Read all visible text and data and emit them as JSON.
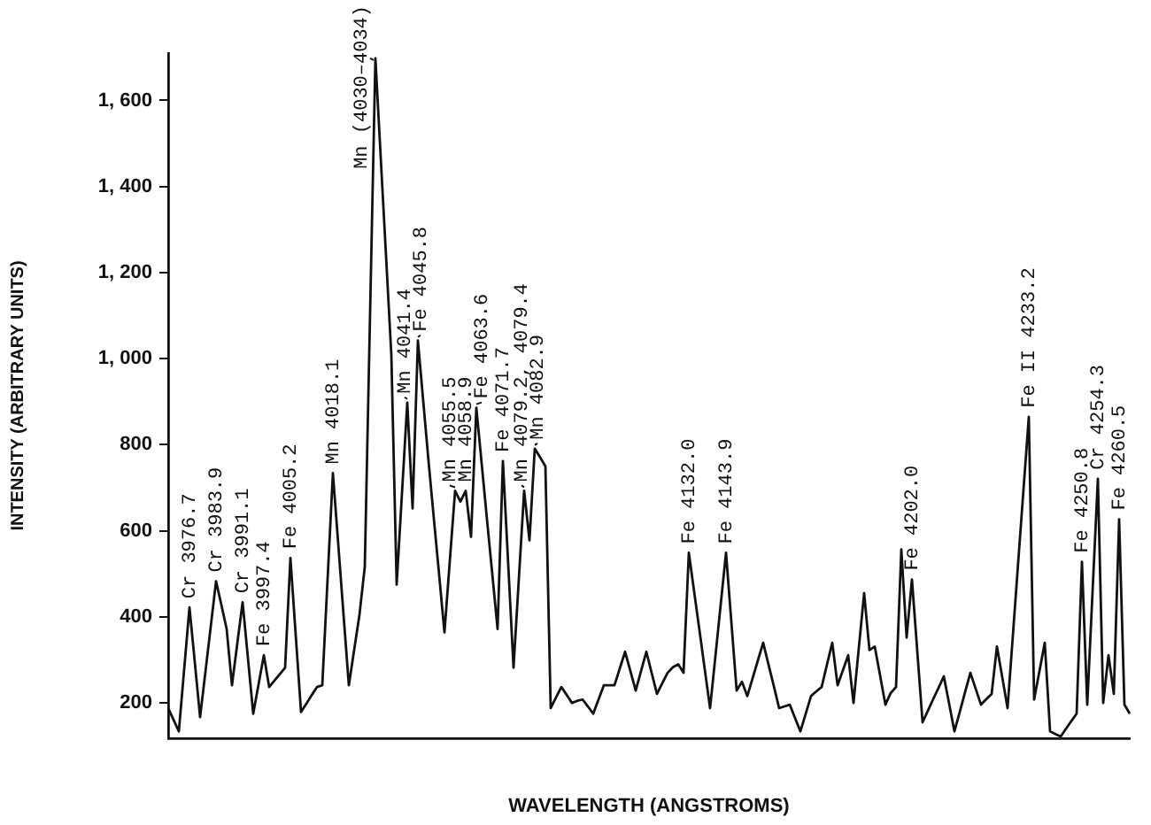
{
  "chart_data": {
    "type": "line",
    "xlabel": "WAVELENGTH (ANGSTROMS)",
    "ylabel": "INTENSITY (ARBITRARY UNITS)",
    "categories": [
      null,
      null,
      null,
      null,
      null,
      null,
      null,
      null,
      null,
      null,
      null,
      null,
      null,
      null,
      null,
      null,
      null,
      null,
      null,
      null,
      null,
      null,
      null,
      null,
      null,
      null,
      null,
      null,
      null,
      null,
      null,
      null,
      null,
      null,
      null,
      null,
      null,
      null,
      null,
      null,
      null,
      null,
      null,
      null,
      null,
      null,
      null,
      null,
      null,
      null,
      null,
      null,
      null,
      null,
      null,
      null,
      null,
      null,
      null,
      null,
      null,
      null,
      null,
      null,
      null,
      null,
      null,
      null,
      null,
      null,
      null,
      null,
      null,
      null,
      null,
      null,
      null,
      null,
      null,
      null,
      null,
      null,
      null,
      null,
      null,
      null,
      null,
      null,
      null,
      null,
      null,
      null,
      null,
      null,
      null,
      null,
      null,
      null,
      null,
      null,
      null,
      null,
      null,
      null,
      null,
      null,
      null,
      null,
      null,
      null,
      null,
      null,
      null,
      null,
      null,
      null,
      null,
      null,
      null,
      null,
      null,
      null,
      null,
      null,
      null,
      null,
      null,
      null,
      null,
      null,
      null,
      null,
      null,
      null,
      null,
      null,
      null,
      null,
      null,
      null,
      null,
      null,
      null,
      null,
      null,
      null,
      null,
      null,
      null,
      null,
      null,
      null,
      null,
      null,
      null,
      null,
      null,
      null,
      null,
      null,
      null,
      null,
      null,
      null,
      null,
      null,
      null,
      null,
      null,
      null,
      null,
      null,
      null,
      null,
      null,
      null,
      null,
      null,
      null,
      null,
      null,
      null
    ],
    "ylim": [
      118,
      1710
    ],
    "yticks": [
      {
        "value": 200,
        "label": "200"
      },
      {
        "value": 400,
        "label": "400"
      },
      {
        "value": 600,
        "label": "600"
      },
      {
        "value": 800,
        "label": "800"
      },
      {
        "value": 1000,
        "label": "1, 000"
      },
      {
        "value": 1200,
        "label": "1, 200"
      },
      {
        "value": 1400,
        "label": "1, 400"
      },
      {
        "value": 1600,
        "label": "1, 600"
      }
    ],
    "tick_labels": "y",
    "grid": false,
    "legend": false,
    "marker": "none",
    "line_style": "solid",
    "series": [
      {
        "color": "#111111",
        "values": [
          188,
          161,
          134,
          278,
          422,
          295,
          167,
          272,
          377,
          483,
          428,
          372,
          241,
          338,
          434,
          305,
          175,
          243,
          311,
          237,
          252,
          267,
          282,
          537,
          358,
          179,
          198,
          218,
          237,
          241,
          488,
          734,
          570,
          405,
          241,
          323,
          405,
          516,
          1107,
          1698,
          1468,
          1239,
          1009,
          475,
          687,
          898,
          652,
          1042,
          902,
          762,
          629,
          497,
          364,
          529,
          693,
          668,
          693,
          586,
          886,
          757,
          627,
          500,
          372,
          762,
          522,
          282,
          488,
          693,
          578,
          791,
          771,
          750,
          188,
          213,
          237,
          219,
          200,
          205,
          208,
          192,
          175,
          208,
          241,
          241,
          241,
          280,
          319,
          274,
          229,
          274,
          319,
          270,
          221,
          246,
          270,
          283,
          290,
          270,
          549,
          459,
          369,
          278,
          188,
          308,
          429,
          549,
          389,
          229,
          249,
          216,
          257,
          299,
          340,
          289,
          239,
          188,
          192,
          196,
          165,
          134,
          175,
          216,
          227,
          237,
          289,
          340,
          241,
          276,
          311,
          200,
          328,
          455,
          323,
          331,
          264,
          196,
          223,
          237,
          557,
          352,
          487,
          321,
          155,
          182,
          209,
          235,
          262,
          198,
          134,
          179,
          225,
          270,
          233,
          196,
          209,
          221,
          331,
          260,
          188,
          357,
          527,
          696,
          865,
          208,
          274,
          340,
          134,
          128,
          122,
          140,
          158,
          175,
          528,
          196,
          459,
          721,
          200,
          311,
          221,
          627,
          196,
          175
        ]
      }
    ],
    "annotations": [
      {
        "text": "Cr 3976.7",
        "y": 422
      },
      {
        "text": "Cr 3983.9",
        "y": 483
      },
      {
        "text": "Cr 3991.1",
        "y": 434
      },
      {
        "text": "Fe 3997.4",
        "y": 311
      },
      {
        "text": "Fe 4005.2",
        "y": 537
      },
      {
        "text": "Mn 4018.1",
        "y": 734
      },
      {
        "text": "Mn (4030–4034)",
        "y": 1698
      },
      {
        "text": "Mn 4041.4",
        "y": 898
      },
      {
        "text": "Fe 4045.8",
        "y": 1042
      },
      {
        "text": "Mn 4055.5",
        "y": 693
      },
      {
        "text": "Mn 4058.9",
        "y": 693
      },
      {
        "text": "Fe 4063.6",
        "y": 886
      },
      {
        "text": "Fe 4071.7",
        "y": 762
      },
      {
        "text": "Mn 4079.2, 4079.4",
        "y": 693
      },
      {
        "text": "Mn 4082.9",
        "y": 791
      },
      {
        "text": "Fe 4132.0",
        "y": 549
      },
      {
        "text": "Fe 4143.9",
        "y": 549
      },
      {
        "text": "Fe 4202.0",
        "y": 487
      },
      {
        "text": "Fe II 4233.2",
        "y": 865
      },
      {
        "text": "Fe 4250.8",
        "y": 528
      },
      {
        "text": "Cr 4254.3",
        "y": 721
      },
      {
        "text": "Fe 4260.5",
        "y": 627
      }
    ]
  }
}
